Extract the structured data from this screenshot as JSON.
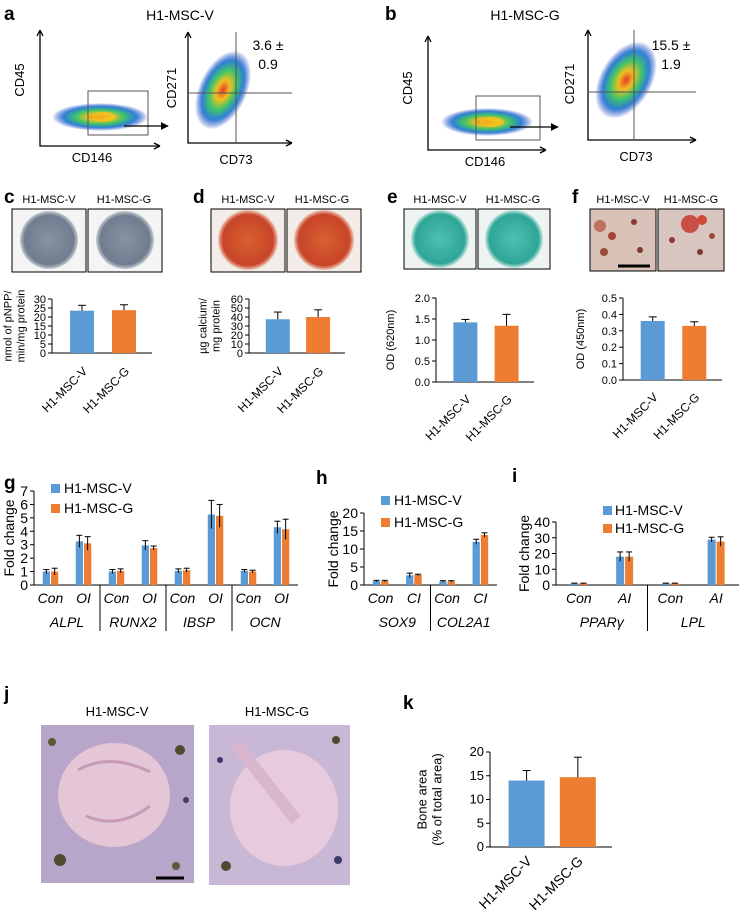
{
  "colors": {
    "series_v": "#5b9bd5",
    "series_g": "#ed7d31",
    "axis": "#000000",
    "alp_well": "#7d8a9c",
    "ars_well": "#d0502a",
    "alcian_well": "#3fb3a3",
    "oil_image": "#c9a898",
    "he_tissue": "#e4c6d6"
  },
  "panels": {
    "a": {
      "letter": "a",
      "title": "H1-MSC-V",
      "plot1_x": "CD146",
      "plot1_y": "CD45",
      "plot2_x": "CD73",
      "plot2_y": "CD271",
      "stat_line1": "3.6 ±",
      "stat_line2": "0.9"
    },
    "b": {
      "letter": "b",
      "title": "H1-MSC-G",
      "plot1_x": "CD146",
      "plot1_y": "CD45",
      "plot2_x": "CD73",
      "plot2_y": "CD271",
      "stat_line1": "15.5 ±",
      "stat_line2": "1.9"
    },
    "c": {
      "letter": "c",
      "label_v": "H1-MSC-V",
      "label_g": "H1-MSC-G"
    },
    "d": {
      "letter": "d",
      "label_v": "H1-MSC-V",
      "label_g": "H1-MSC-G"
    },
    "e": {
      "letter": "e",
      "label_v": "H1-MSC-V",
      "label_g": "H1-MSC-G"
    },
    "f": {
      "letter": "f",
      "label_v": "H1-MSC-V",
      "label_g": "H1-MSC-G"
    },
    "g": {
      "letter": "g"
    },
    "h": {
      "letter": "h"
    },
    "i": {
      "letter": "i"
    },
    "j": {
      "letter": "j",
      "label_v": "H1-MSC-V",
      "label_g": "H1-MSC-G"
    },
    "k": {
      "letter": "k"
    }
  },
  "chart_data": [
    {
      "id": "c",
      "type": "bar",
      "categories": [
        "H1-MSC-V",
        "H1-MSC-G"
      ],
      "values": [
        23.5,
        23.8
      ],
      "errors": [
        3,
        3
      ],
      "ylabel_lines": [
        "nmol of pNPP/",
        "min/mg protein"
      ],
      "ylim": [
        0,
        30
      ],
      "yticks": [
        0,
        5,
        10,
        15,
        20,
        25,
        30
      ]
    },
    {
      "id": "d",
      "type": "bar",
      "categories": [
        "H1-MSC-V",
        "H1-MSC-G"
      ],
      "values": [
        37.5,
        40
      ],
      "errors": [
        8,
        8
      ],
      "ylabel_lines": [
        "µg calcium/",
        "mg protein"
      ],
      "ylim": [
        0,
        60
      ],
      "yticks": [
        0,
        10,
        20,
        30,
        40,
        50,
        60
      ]
    },
    {
      "id": "e",
      "type": "bar",
      "categories": [
        "H1-MSC-V",
        "H1-MSC-G"
      ],
      "values": [
        1.42,
        1.34
      ],
      "errors": [
        0.07,
        0.27
      ],
      "ylabel_lines": [
        "OD (620nm)"
      ],
      "ylim": [
        0,
        2.0
      ],
      "yticks": [
        "0.0",
        "0.5",
        "1.0",
        "1.5",
        "2.0"
      ]
    },
    {
      "id": "f",
      "type": "bar",
      "categories": [
        "H1-MSC-V",
        "H1-MSC-G"
      ],
      "values": [
        0.36,
        0.33
      ],
      "errors": [
        0.025,
        0.025
      ],
      "ylabel_lines": [
        "OD (450nm)"
      ],
      "ylim": [
        0,
        0.5
      ],
      "yticks": [
        "0.0",
        "0.1",
        "0.2",
        "0.3",
        "0.4",
        "0.5"
      ]
    },
    {
      "id": "g",
      "type": "bar",
      "legend": [
        "H1-MSC-V",
        "H1-MSC-G"
      ],
      "ylabel": "Fold change",
      "ylim": [
        0,
        7
      ],
      "yticks": [
        0,
        1,
        2,
        3,
        4,
        5,
        6,
        7
      ],
      "conditions": [
        "Con",
        "OI",
        "Con",
        "OI",
        "Con",
        "OI",
        "Con",
        "OI"
      ],
      "genes": [
        "ALPL",
        "RUNX2",
        "IBSP",
        "OCN"
      ],
      "series": [
        {
          "name": "H1-MSC-V",
          "values": [
            1.0,
            3.25,
            1.0,
            2.95,
            1.05,
            5.25,
            1.05,
            4.3
          ],
          "errors": [
            0.15,
            0.45,
            0.15,
            0.35,
            0.15,
            1.05,
            0.1,
            0.45
          ]
        },
        {
          "name": "H1-MSC-G",
          "values": [
            1.0,
            3.1,
            1.05,
            2.75,
            1.1,
            5.15,
            1.0,
            4.15
          ],
          "errors": [
            0.25,
            0.5,
            0.15,
            0.15,
            0.15,
            0.85,
            0.1,
            0.75
          ]
        }
      ]
    },
    {
      "id": "h",
      "type": "bar",
      "legend": [
        "H1-MSC-V",
        "H1-MSC-G"
      ],
      "ylabel": "Fold change",
      "ylim": [
        0,
        20
      ],
      "yticks": [
        0,
        5,
        10,
        15,
        20
      ],
      "conditions": [
        "Con",
        "CI",
        "Con",
        "CI"
      ],
      "genes": [
        "SOX9",
        "COL2A1"
      ],
      "series": [
        {
          "name": "H1-MSC-V",
          "values": [
            1.1,
            2.7,
            1.0,
            12.0
          ],
          "errors": [
            0.2,
            0.6,
            0.2,
            0.7
          ]
        },
        {
          "name": "H1-MSC-G",
          "values": [
            1.1,
            2.8,
            1.0,
            13.9
          ],
          "errors": [
            0.2,
            0.2,
            0.2,
            0.6
          ]
        }
      ]
    },
    {
      "id": "i",
      "type": "bar",
      "legend": [
        "H1-MSC-V",
        "H1-MSC-G"
      ],
      "ylabel": "Fold change",
      "ylim": [
        0,
        40
      ],
      "yticks": [
        0,
        10,
        20,
        30,
        40
      ],
      "conditions": [
        "Con",
        "AI",
        "Con",
        "AI"
      ],
      "genes": [
        "PPARγ",
        "LPL"
      ],
      "series": [
        {
          "name": "H1-MSC-V",
          "values": [
            1.0,
            18.0,
            1.0,
            28.8
          ],
          "errors": [
            0.2,
            3.0,
            0.2,
            1.5
          ]
        },
        {
          "name": "H1-MSC-G",
          "values": [
            1.0,
            18.0,
            1.0,
            27.6
          ],
          "errors": [
            0.2,
            3.0,
            0.2,
            3.0
          ]
        }
      ]
    },
    {
      "id": "k",
      "type": "bar",
      "categories": [
        "H1-MSC-V",
        "H1-MSC-G"
      ],
      "values": [
        14.0,
        14.7
      ],
      "errors": [
        2.1,
        4.2
      ],
      "ylabel_lines": [
        "Bone area",
        "(% of total area)"
      ],
      "ylim": [
        0,
        20
      ],
      "yticks": [
        0,
        5,
        10,
        15,
        20
      ]
    }
  ]
}
